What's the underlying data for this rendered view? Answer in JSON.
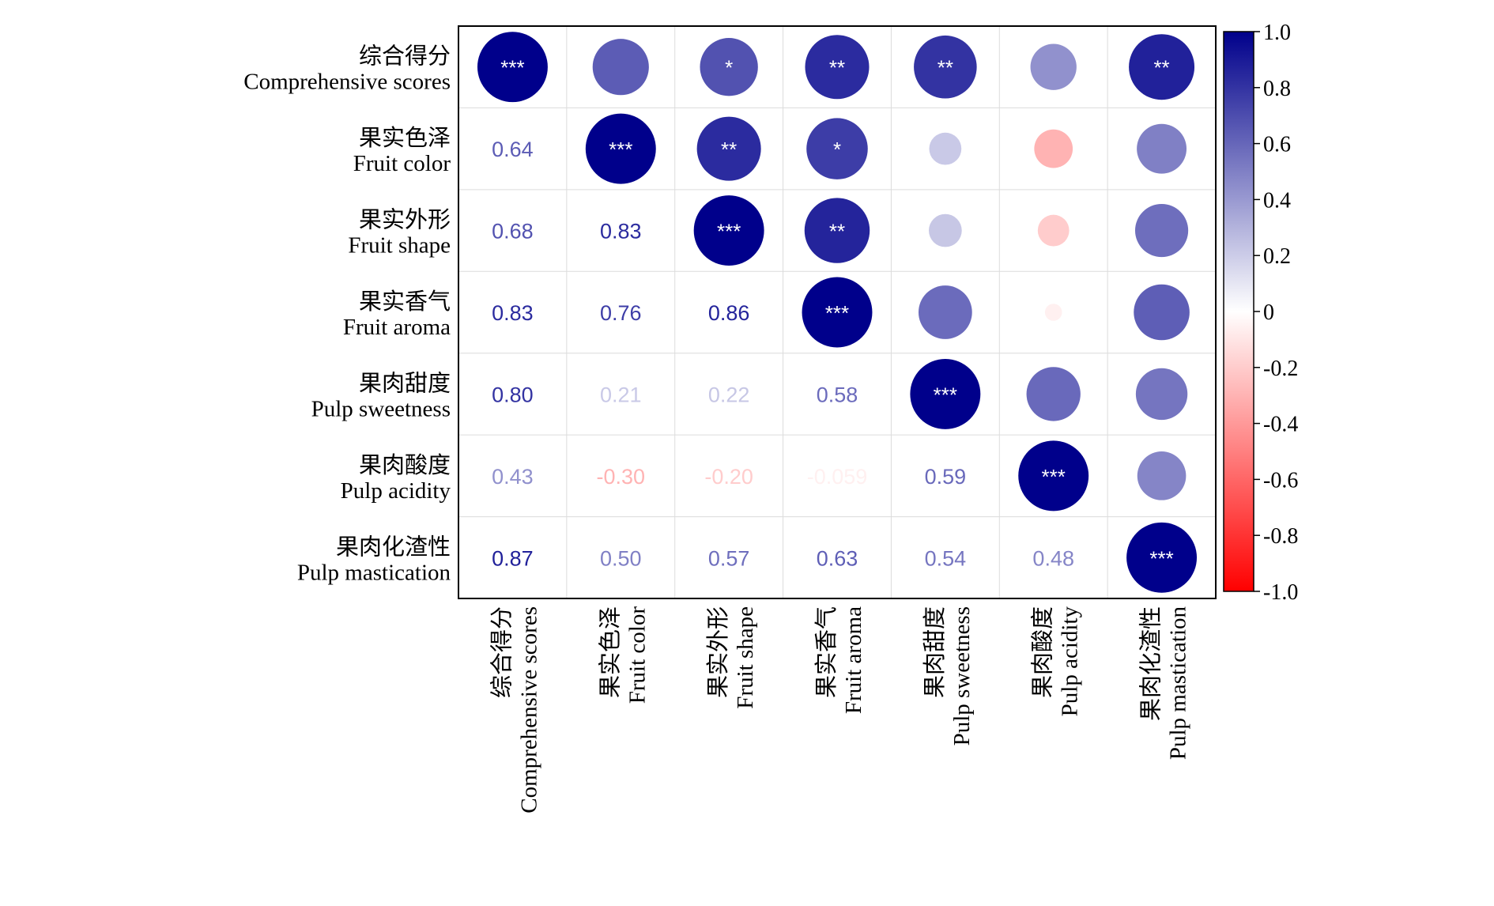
{
  "chart_data": {
    "type": "heatmap",
    "subtype": "correlation-matrix (upper: circles with significance stars, lower: coefficients)",
    "variables": [
      {
        "zh": "综合得分",
        "en": "Comprehensive scores"
      },
      {
        "zh": "果实色泽",
        "en": "Fruit color"
      },
      {
        "zh": "果实外形",
        "en": "Fruit shape"
      },
      {
        "zh": "果实香气",
        "en": "Fruit aroma"
      },
      {
        "zh": "果肉甜度",
        "en": "Pulp sweetness"
      },
      {
        "zh": "果肉酸度",
        "en": "Pulp acidity"
      },
      {
        "zh": "果肉化渣性",
        "en": "Pulp mastication"
      }
    ],
    "matrix": [
      [
        1.0,
        0.64,
        0.68,
        0.83,
        0.8,
        0.43,
        0.87
      ],
      [
        0.64,
        1.0,
        0.83,
        0.76,
        0.21,
        -0.3,
        0.5
      ],
      [
        0.68,
        0.83,
        1.0,
        0.86,
        0.22,
        -0.2,
        0.57
      ],
      [
        0.83,
        0.76,
        0.86,
        1.0,
        0.58,
        -0.059,
        0.63
      ],
      [
        0.8,
        0.21,
        0.22,
        0.58,
        1.0,
        0.59,
        0.54
      ],
      [
        0.43,
        -0.3,
        -0.2,
        -0.059,
        0.59,
        1.0,
        0.48
      ],
      [
        0.87,
        0.5,
        0.57,
        0.63,
        0.54,
        0.48,
        1.0
      ]
    ],
    "lower_labels": [
      [
        "",
        "",
        "",
        "",
        "",
        "",
        ""
      ],
      [
        "0.64",
        "",
        "",
        "",
        "",
        "",
        ""
      ],
      [
        "0.68",
        "0.83",
        "",
        "",
        "",
        "",
        ""
      ],
      [
        "0.83",
        "0.76",
        "0.86",
        "",
        "",
        "",
        ""
      ],
      [
        "0.80",
        "0.21",
        "0.22",
        "0.58",
        "",
        "",
        ""
      ],
      [
        "0.43",
        "-0.30",
        "-0.20",
        "-0.059",
        "0.59",
        "",
        ""
      ],
      [
        "0.87",
        "0.50",
        "0.57",
        "0.63",
        "0.54",
        "0.48",
        ""
      ]
    ],
    "significance": [
      [
        "***",
        "",
        "*",
        "**",
        "**",
        "",
        "**"
      ],
      [
        "",
        "***",
        "**",
        "*",
        "",
        "",
        ""
      ],
      [
        "",
        "",
        "***",
        "**",
        "",
        "",
        ""
      ],
      [
        "",
        "",
        "",
        "***",
        "",
        "",
        ""
      ],
      [
        "",
        "",
        "",
        "",
        "***",
        "",
        ""
      ],
      [
        "",
        "",
        "",
        "",
        "",
        "***",
        ""
      ],
      [
        "",
        "",
        "",
        "",
        "",
        "",
        "***"
      ]
    ],
    "colorbar": {
      "range": [
        -1.0,
        1.0
      ],
      "ticks": [
        "1.0",
        "0.8",
        "0.6",
        "0.4",
        "0.2",
        "0",
        "-0.2",
        "-0.4",
        "-0.6",
        "-0.8",
        "-1.0"
      ],
      "tick_values": [
        1.0,
        0.8,
        0.6,
        0.4,
        0.2,
        0,
        -0.2,
        -0.4,
        -0.6,
        -0.8,
        -1.0
      ],
      "colors": {
        "positive": "#00008B",
        "zero": "#FFFFFF",
        "negative": "#FF0000"
      }
    },
    "grid": true,
    "legend": "right"
  }
}
